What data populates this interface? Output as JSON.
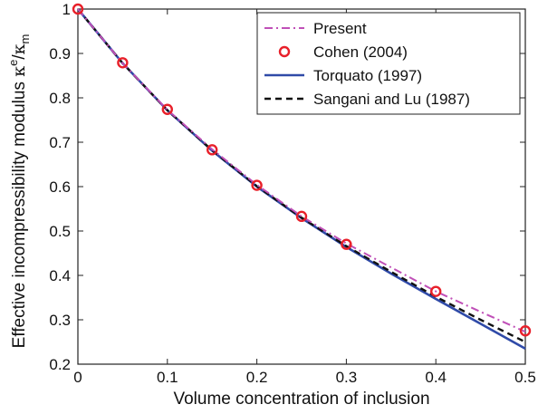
{
  "chart_data": {
    "type": "line",
    "xlabel": "Volume concentration of inclusion",
    "ylabel_main": "Effective incompressibility modulus",
    "ylabel_symbol": "κ",
    "ylabel_sup": "e",
    "ylabel_sep": "/",
    "ylabel_symbol2": "κ",
    "ylabel_sub": "m",
    "xlim": [
      0,
      0.5
    ],
    "ylim": [
      0.2,
      1.0
    ],
    "xticks": [
      0,
      0.1,
      0.2,
      0.3,
      0.4,
      0.5
    ],
    "xtick_labels": [
      "0",
      "0.1",
      "0.2",
      "0.3",
      "0.4",
      "0.5"
    ],
    "yticks": [
      0.2,
      0.3,
      0.4,
      0.5,
      0.6,
      0.7,
      0.8,
      0.9,
      1.0
    ],
    "ytick_labels": [
      "0.2",
      "0.3",
      "0.4",
      "0.5",
      "0.6",
      "0.7",
      "0.8",
      "0.9",
      "1"
    ],
    "grid": false,
    "legend_position": "top-right",
    "series": [
      {
        "name": "Present",
        "style": "dashdot",
        "color": "#c050b8",
        "x": [
          0,
          0.05,
          0.1,
          0.15,
          0.2,
          0.25,
          0.3,
          0.35,
          0.4,
          0.45,
          0.5
        ],
        "y": [
          1.0,
          0.878,
          0.773,
          0.684,
          0.604,
          0.533,
          0.472,
          0.418,
          0.364,
          0.318,
          0.273
        ]
      },
      {
        "name": "Cohen (2004)",
        "style": "markers",
        "color": "#e8202a",
        "x": [
          0,
          0.05,
          0.1,
          0.15,
          0.2,
          0.25,
          0.3,
          0.4,
          0.5
        ],
        "y": [
          1.0,
          0.879,
          0.774,
          0.683,
          0.603,
          0.533,
          0.47,
          0.364,
          0.275
        ]
      },
      {
        "name": "Torquato (1997)",
        "style": "solid",
        "color": "#2f4aa8",
        "x": [
          0,
          0.05,
          0.1,
          0.15,
          0.2,
          0.25,
          0.3,
          0.35,
          0.4,
          0.45,
          0.5
        ],
        "y": [
          1.0,
          0.878,
          0.772,
          0.681,
          0.6,
          0.529,
          0.464,
          0.404,
          0.347,
          0.291,
          0.235
        ]
      },
      {
        "name": "Sangani and Lu (1987)",
        "style": "dashed",
        "color": "#111111",
        "x": [
          0,
          0.05,
          0.1,
          0.15,
          0.2,
          0.25,
          0.3,
          0.35,
          0.4,
          0.45,
          0.5
        ],
        "y": [
          1.0,
          0.878,
          0.772,
          0.682,
          0.601,
          0.53,
          0.466,
          0.408,
          0.352,
          0.3,
          0.25
        ]
      }
    ]
  }
}
